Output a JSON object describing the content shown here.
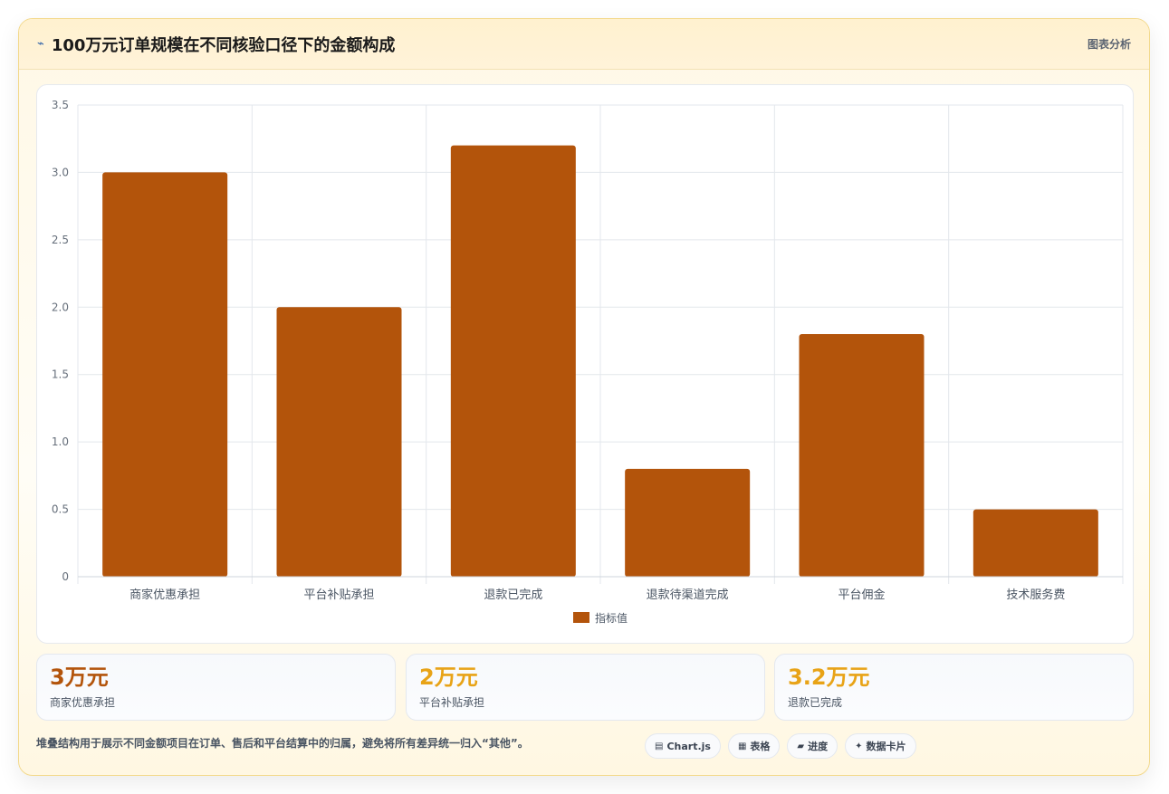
{
  "header": {
    "title_icon": "⌁",
    "title": "100万元订单规模在不同核验口径下的金额构成",
    "right_label": "图表分析"
  },
  "chart_data": {
    "type": "bar",
    "categories": [
      "商家优惠承担",
      "平台补贴承担",
      "退款已完成",
      "退款待渠道完成",
      "平台佣金",
      "技术服务费"
    ],
    "series": [
      {
        "name": "指标值",
        "values": [
          3.0,
          2.0,
          3.2,
          0.8,
          1.8,
          0.5
        ],
        "color": "#b3540b"
      }
    ],
    "ylim": [
      0,
      3.5
    ],
    "yticks": [
      0,
      0.5,
      1.0,
      1.5,
      2.0,
      2.5,
      3.0,
      3.5
    ],
    "ytick_labels": [
      "0",
      "0.5",
      "1.0",
      "1.5",
      "2.0",
      "2.5",
      "3.0",
      "3.5"
    ],
    "grid": true,
    "legend_position": "bottom"
  },
  "kpis": [
    {
      "value": "3万元",
      "label": "商家优惠承担",
      "color": "#b3540b"
    },
    {
      "value": "2万元",
      "label": "平台补贴承担",
      "color": "#e8a317"
    },
    {
      "value": "3.2万元",
      "label": "退款已完成",
      "color": "#e8a317"
    }
  ],
  "footer": {
    "note": "堆叠结构用于展示不同金额项目在订单、售后和平台结算中的归属，避免将所有差异统一归入“其他”。",
    "pills": [
      {
        "icon": "▤",
        "icon_name": "chart-icon",
        "label": "Chart.js"
      },
      {
        "icon": "▦",
        "icon_name": "table-icon",
        "label": "表格"
      },
      {
        "icon": "▰",
        "icon_name": "progress-icon",
        "label": "进度"
      },
      {
        "icon": "✦",
        "icon_name": "sparkle-icon",
        "label": "数据卡片"
      }
    ]
  }
}
